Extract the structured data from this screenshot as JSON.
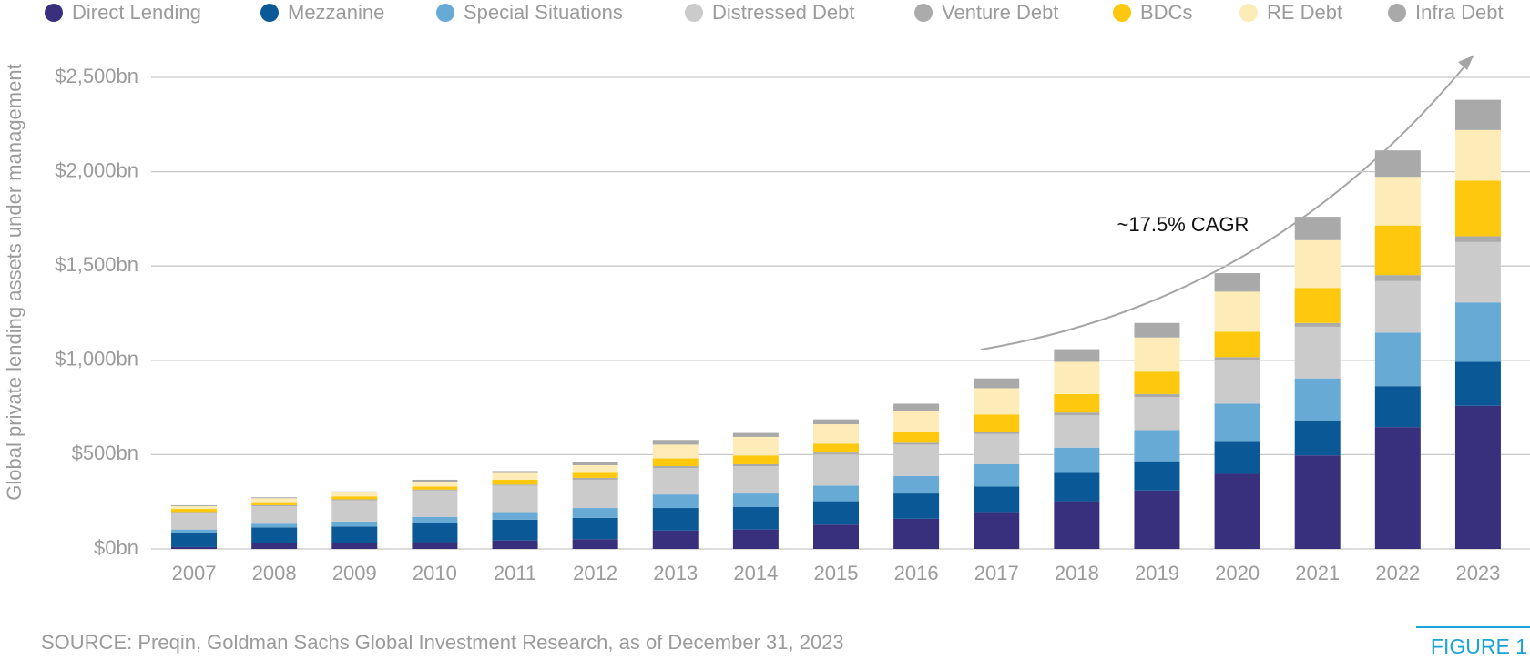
{
  "chart_data": {
    "type": "stacked-bar",
    "y_label": "Global private lending assets under management",
    "annotation": "~17.5% CAGR",
    "source": "SOURCE: Preqin, Goldman Sachs Global Investment Research, as of December 31, 2023",
    "figure_label": "FIGURE 1",
    "categories": [
      "2007",
      "2008",
      "2009",
      "2010",
      "2011",
      "2012",
      "2013",
      "2014",
      "2015",
      "2016",
      "2017",
      "2018",
      "2019",
      "2020",
      "2021",
      "2022",
      "2023"
    ],
    "series": [
      {
        "name": "Direct Lending",
        "color": "#382f7d",
        "values": [
          10,
          31,
          31,
          36,
          45,
          52,
          98,
          103,
          129,
          160,
          196,
          253,
          310,
          398,
          496,
          646,
          759
        ]
      },
      {
        "name": "Mezzanine",
        "color": "#0a5996",
        "values": [
          73,
          83,
          88,
          103,
          110,
          113,
          119,
          119,
          124,
          134,
          135,
          150,
          155,
          175,
          186,
          217,
          233
        ]
      },
      {
        "name": "Special Situations",
        "color": "#68aad6",
        "values": [
          20,
          20,
          26,
          31,
          41,
          52,
          72,
          72,
          83,
          93,
          118,
          134,
          165,
          197,
          222,
          284,
          315
        ]
      },
      {
        "name": "Distressed Debt",
        "color": "#cbcbcb",
        "values": [
          88,
          93,
          113,
          140,
          140,
          150,
          140,
          145,
          165,
          166,
          160,
          171,
          176,
          232,
          274,
          273,
          320
        ]
      },
      {
        "name": "Venture Debt",
        "color": "#ababab",
        "values": [
          5,
          5,
          5,
          5,
          5,
          10,
          10,
          10,
          10,
          10,
          11,
          15,
          15,
          15,
          20,
          32,
          31
        ]
      },
      {
        "name": "BDCs",
        "color": "#fdc80d",
        "values": [
          16,
          16,
          16,
          16,
          26,
          26,
          41,
          47,
          47,
          57,
          93,
          98,
          119,
          135,
          186,
          263,
          295
        ]
      },
      {
        "name": "RE Debt",
        "color": "#fdecb8",
        "values": [
          15,
          21,
          21,
          25,
          36,
          41,
          73,
          98,
          103,
          113,
          139,
          171,
          181,
          212,
          253,
          258,
          268
        ]
      },
      {
        "name": "Infra Debt",
        "color": "#a9a9a9",
        "values": [
          5,
          5,
          5,
          11,
          10,
          16,
          25,
          21,
          26,
          37,
          52,
          67,
          77,
          98,
          124,
          140,
          160
        ]
      }
    ],
    "ylim": [
      0,
      2500
    ],
    "yticks": [
      {
        "value": 0,
        "label": "$0bn"
      },
      {
        "value": 500,
        "label": "$500bn"
      },
      {
        "value": 1000,
        "label": "$1,000bn"
      },
      {
        "value": 1500,
        "label": "$1,500bn"
      },
      {
        "value": 2000,
        "label": "$2,000bn"
      },
      {
        "value": 2500,
        "label": "$2,500bn"
      }
    ],
    "grid": true
  }
}
